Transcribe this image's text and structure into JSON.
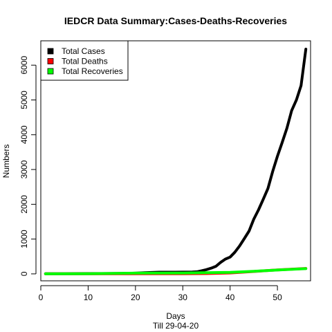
{
  "chart_data": {
    "type": "line",
    "title": "IEDCR Data Summary:Cases-Deaths-Recoveries",
    "xlabel": "Days",
    "xsublabel": "Till 29-04-20",
    "ylabel": "Numbers",
    "xlim": [
      0,
      57
    ],
    "ylim": [
      -200,
      6700
    ],
    "xticks": [
      0,
      10,
      20,
      30,
      40,
      50
    ],
    "yticks": [
      0,
      1000,
      2000,
      3000,
      4000,
      5000,
      6000
    ],
    "grid": false,
    "legend_position": "top-left",
    "series": [
      {
        "name": "Total Cases",
        "color": "#000000",
        "x": [
          1,
          5,
          10,
          15,
          18,
          20,
          22,
          25,
          28,
          30,
          32,
          33,
          34,
          35,
          36,
          37,
          38,
          39,
          40,
          41,
          42,
          43,
          44,
          45,
          46,
          47,
          48,
          49,
          50,
          51,
          52,
          53,
          54,
          55,
          56
        ],
        "values": [
          3,
          5,
          8,
          10,
          14,
          20,
          33,
          48,
          49,
          51,
          54,
          61,
          88,
          123,
          164,
          218,
          330,
          424,
          482,
          621,
          803,
          1012,
          1231,
          1572,
          1838,
          2144,
          2456,
          2948,
          3382,
          3772,
          4186,
          4689,
          4998,
          5416,
          6462
        ]
      },
      {
        "name": "Total Deaths",
        "color": "#ff0000",
        "x": [
          1,
          10,
          20,
          30,
          35,
          40,
          45,
          50,
          56
        ],
        "values": [
          0,
          1,
          3,
          5,
          9,
          27,
          68,
          114,
          155
        ]
      },
      {
        "name": "Total Recoveries",
        "color": "#00ff00",
        "x": [
          1,
          10,
          20,
          30,
          35,
          40,
          45,
          50,
          56
        ],
        "values": [
          0,
          3,
          20,
          25,
          33,
          42,
          75,
          111,
          150
        ]
      }
    ]
  }
}
